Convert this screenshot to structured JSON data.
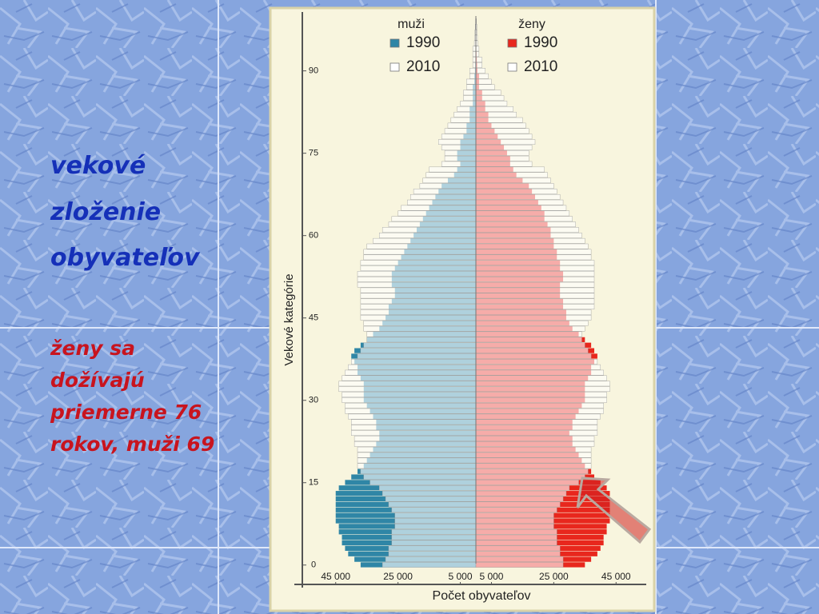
{
  "slide": {
    "heading": [
      "vekové",
      "zloženie",
      "obyvateľov"
    ],
    "note": [
      "ženy sa",
      "dožívajú",
      "priemerne 76",
      "rokov, muži 69"
    ]
  },
  "chart_data": {
    "type": "pyramid",
    "y_label": "Vekové kategórie",
    "x_label": "Počet obyvateľov",
    "ylim": [
      -0.5,
      99.5
    ],
    "yticks": [
      0,
      15,
      30,
      45,
      60,
      75,
      90
    ],
    "xlim": [
      -57000,
      57000
    ],
    "xticks": [
      {
        "value": -45000,
        "label": "45 000"
      },
      {
        "value": -25000,
        "label": "25 000"
      },
      {
        "value": -5000,
        "label": "5 000"
      },
      {
        "value": 5000,
        "label": "5 000"
      },
      {
        "value": 25000,
        "label": "25 000"
      },
      {
        "value": 45000,
        "label": "45 000"
      }
    ],
    "y": [
      0,
      1,
      2,
      3,
      4,
      5,
      6,
      7,
      8,
      9,
      10,
      11,
      12,
      13,
      14,
      15,
      16,
      17,
      18,
      19,
      20,
      21,
      22,
      23,
      24,
      25,
      26,
      27,
      28,
      29,
      30,
      31,
      32,
      33,
      34,
      35,
      36,
      37,
      38,
      39,
      40,
      41,
      42,
      43,
      44,
      45,
      46,
      47,
      48,
      49,
      50,
      51,
      52,
      53,
      54,
      55,
      56,
      57,
      58,
      59,
      60,
      61,
      62,
      63,
      64,
      65,
      66,
      67,
      68,
      69,
      70,
      71,
      72,
      73,
      74,
      75,
      76,
      77,
      78,
      79,
      80,
      81,
      82,
      83,
      84,
      85,
      86,
      87,
      88,
      89,
      90,
      91,
      92,
      93,
      94,
      95,
      96,
      97,
      98,
      99
    ],
    "sides": [
      {
        "name": "muži",
        "series": [
          {
            "name": "1990",
            "color": "#2f86a6",
            "values": [
              37000,
              39000,
              41000,
              42000,
              43000,
              43000,
              44000,
              44000,
              45000,
              45000,
              45000,
              45000,
              45000,
              45000,
              44000,
              42000,
              40000,
              38000,
              36000,
              35000,
              34000,
              33000,
              32000,
              31000,
              31000,
              32000,
              32000,
              33000,
              34000,
              35000,
              36000,
              36000,
              36000,
              36000,
              37000,
              38000,
              38000,
              39000,
              40000,
              39000,
              37000,
              35000,
              33000,
              31000,
              30000,
              29000,
              28000,
              28000,
              27000,
              26000,
              26000,
              27000,
              27000,
              27000,
              26000,
              25000,
              24000,
              23000,
              22000,
              21000,
              20000,
              19000,
              18000,
              17000,
              16000,
              15000,
              14000,
              13000,
              12000,
              11000,
              9000,
              7000,
              6000,
              5000,
              6000,
              6000,
              5000,
              5000,
              4000,
              3000,
              3000,
              2000,
              2000,
              2000,
              1000,
              1000,
              1000,
              1000,
              500,
              500,
              300,
              200,
              100,
              100,
              100,
              50,
              50,
              50,
              50,
              50
            ]
          },
          {
            "name": "2010",
            "color": "#ffffff",
            "values": [
              30000,
              29000,
              28000,
              28000,
              27000,
              27000,
              27000,
              26000,
              26000,
              26000,
              27000,
              28000,
              29000,
              30000,
              31000,
              34000,
              36000,
              37000,
              38000,
              38000,
              38000,
              38000,
              39000,
              39000,
              40000,
              40000,
              40000,
              41000,
              42000,
              42000,
              43000,
              43000,
              44000,
              44000,
              43000,
              42000,
              41000,
              40000,
              38000,
              37000,
              36000,
              35000,
              35000,
              36000,
              36000,
              37000,
              37000,
              37000,
              37000,
              37000,
              37000,
              38000,
              38000,
              38000,
              37000,
              37000,
              36000,
              36000,
              35000,
              33000,
              31000,
              30000,
              28000,
              27000,
              25000,
              24000,
              22000,
              21000,
              20000,
              18000,
              17000,
              16000,
              15000,
              11000,
              10000,
              10000,
              11000,
              12000,
              11000,
              10000,
              9000,
              8000,
              7000,
              6000,
              5000,
              4000,
              4000,
              3000,
              3000,
              2000,
              2000,
              1000,
              1000,
              1000,
              1000,
              500,
              400,
              300,
              200,
              100
            ]
          }
        ]
      },
      {
        "name": "ženy",
        "series": [
          {
            "name": "1990",
            "color": "#e8271d",
            "values": [
              35000,
              37000,
              39000,
              40000,
              41000,
              41000,
              42000,
              42000,
              43000,
              43000,
              43000,
              43000,
              43000,
              43000,
              42000,
              40000,
              38000,
              37000,
              35000,
              34000,
              33000,
              32000,
              31000,
              31000,
              30000,
              31000,
              31000,
              32000,
              33000,
              34000,
              35000,
              35000,
              35000,
              35000,
              36000,
              37000,
              37000,
              38000,
              39000,
              38000,
              37000,
              35000,
              33000,
              31000,
              30000,
              29000,
              29000,
              28000,
              28000,
              27000,
              27000,
              27000,
              28000,
              28000,
              27000,
              27000,
              26000,
              26000,
              25000,
              25000,
              24000,
              24000,
              23000,
              22000,
              22000,
              21000,
              20000,
              19000,
              18000,
              17000,
              15000,
              13000,
              12000,
              11000,
              11000,
              10000,
              9000,
              8000,
              7000,
              6000,
              5000,
              4000,
              4000,
              3000,
              3000,
              2000,
              2000,
              1000,
              1000,
              1000,
              500,
              400,
              300,
              200,
              100,
              100,
              50,
              50,
              50,
              50
            ]
          },
          {
            "name": "2010",
            "color": "#ffffff",
            "values": [
              28000,
              28000,
              27000,
              27000,
              26000,
              26000,
              26000,
              25000,
              25000,
              25000,
              26000,
              27000,
              28000,
              29000,
              30000,
              33000,
              35000,
              36000,
              37000,
              37000,
              37000,
              37000,
              38000,
              38000,
              39000,
              39000,
              39000,
              40000,
              41000,
              41000,
              42000,
              42000,
              43000,
              43000,
              42000,
              41000,
              40000,
              39000,
              37000,
              36000,
              35000,
              34000,
              34000,
              35000,
              36000,
              37000,
              37000,
              38000,
              38000,
              38000,
              38000,
              38000,
              38000,
              38000,
              38000,
              38000,
              37000,
              37000,
              36000,
              35000,
              34000,
              33000,
              32000,
              31000,
              30000,
              29000,
              28000,
              27000,
              26000,
              25000,
              24000,
              23000,
              22000,
              18000,
              17000,
              17000,
              18000,
              19000,
              18000,
              17000,
              16000,
              15000,
              13000,
              12000,
              10000,
              9000,
              8000,
              6000,
              5000,
              4000,
              3000,
              2000,
              2000,
              1000,
              1000,
              600,
              500,
              400,
              300,
              200
            ]
          }
        ]
      }
    ]
  }
}
